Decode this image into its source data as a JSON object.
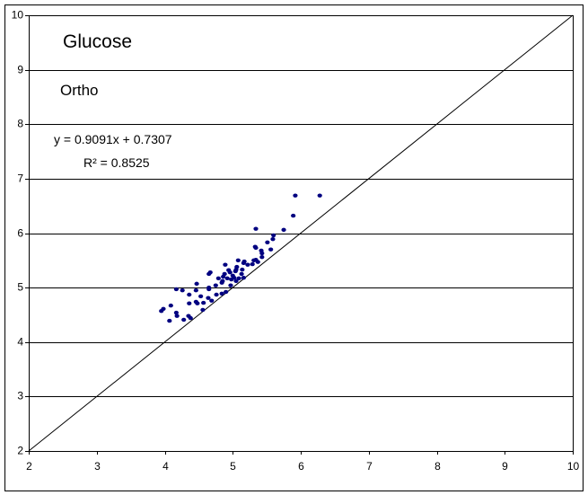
{
  "chart_data": {
    "type": "scatter",
    "annotations": [
      "Glucose",
      "Ortho",
      "y = 0.9091x + 0.7307",
      "R² = 0.8525"
    ],
    "xlim": [
      2,
      10
    ],
    "ylim": [
      2,
      10
    ],
    "xticks": [
      2,
      3,
      4,
      5,
      6,
      7,
      8,
      9,
      10
    ],
    "yticks": [
      2,
      3,
      4,
      5,
      6,
      7,
      8,
      9,
      10
    ],
    "grid": true,
    "color": "#000080",
    "reference_line": {
      "x": [
        2,
        10
      ],
      "y": [
        2,
        10
      ]
    },
    "x": [
      3.95,
      3.98,
      4.07,
      4.09,
      4.17,
      4.17,
      4.18,
      4.26,
      4.28,
      4.35,
      4.36,
      4.36,
      4.38,
      4.46,
      4.46,
      4.47,
      4.48,
      4.53,
      4.56,
      4.57,
      4.64,
      4.65,
      4.65,
      4.65,
      4.67,
      4.69,
      4.75,
      4.76,
      4.79,
      4.84,
      4.84,
      4.85,
      4.86,
      4.88,
      4.89,
      4.9,
      4.92,
      4.94,
      4.96,
      4.97,
      4.98,
      5.0,
      5.02,
      5.04,
      5.05,
      5.05,
      5.06,
      5.08,
      5.09,
      5.13,
      5.14,
      5.16,
      5.16,
      5.17,
      5.22,
      5.29,
      5.31,
      5.33,
      5.34,
      5.34,
      5.37,
      5.42,
      5.43,
      5.43,
      5.51,
      5.56,
      5.59,
      5.6,
      5.75,
      5.89,
      5.92,
      6.28,
      5.34
    ],
    "y": [
      4.57,
      4.61,
      4.39,
      4.67,
      4.97,
      4.54,
      4.48,
      4.95,
      4.41,
      4.48,
      4.71,
      4.87,
      4.44,
      4.95,
      4.74,
      5.07,
      4.71,
      4.84,
      4.59,
      4.72,
      4.81,
      4.97,
      5.0,
      5.25,
      5.28,
      4.76,
      5.04,
      4.87,
      5.17,
      5.09,
      4.89,
      5.12,
      5.2,
      5.25,
      5.42,
      4.92,
      5.17,
      5.32,
      5.28,
      5.04,
      5.15,
      5.22,
      5.18,
      5.3,
      5.33,
      5.12,
      5.38,
      5.5,
      5.17,
      5.25,
      5.33,
      5.18,
      5.45,
      5.48,
      5.42,
      5.43,
      5.5,
      5.75,
      5.51,
      5.73,
      5.47,
      5.68,
      5.56,
      5.63,
      5.83,
      5.7,
      5.89,
      5.96,
      6.06,
      6.32,
      6.69,
      6.69,
      6.08
    ]
  }
}
